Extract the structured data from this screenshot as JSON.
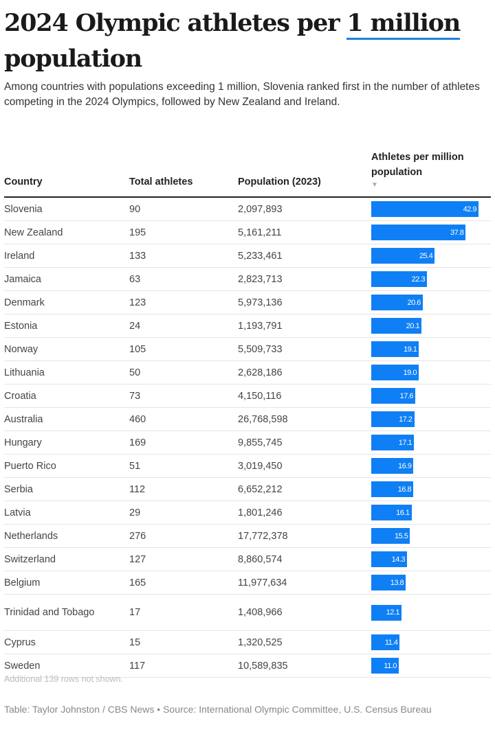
{
  "title": {
    "before": "2024 Olympic athletes per ",
    "highlight": "1 million",
    "after": " population"
  },
  "subtitle": "Among countries with populations exceeding 1 million, Slovenia ranked first in the number of athletes competing in the 2024 Olympics, followed by New Zealand and Ireland.",
  "colors": {
    "bar": "#0f7ff5",
    "highlight_underline": "#1f7fe0"
  },
  "chart_data": {
    "type": "table",
    "columns": [
      "Country",
      "Total athletes",
      "Population (2023)",
      "Athletes per million population"
    ],
    "sort": {
      "column": "Athletes per million population",
      "direction": "descending",
      "icon": "sort-down-triangle"
    },
    "bar_column": "Athletes per million population",
    "xlim": [
      0,
      42.9
    ],
    "rows": [
      {
        "country": "Slovenia",
        "athletes": "90",
        "population": "2,097,893",
        "per_million": 42.9
      },
      {
        "country": "New Zealand",
        "athletes": "195",
        "population": "5,161,211",
        "per_million": 37.8
      },
      {
        "country": "Ireland",
        "athletes": "133",
        "population": "5,233,461",
        "per_million": 25.4
      },
      {
        "country": "Jamaica",
        "athletes": "63",
        "population": "2,823,713",
        "per_million": 22.3
      },
      {
        "country": "Denmark",
        "athletes": "123",
        "population": "5,973,136",
        "per_million": 20.6
      },
      {
        "country": "Estonia",
        "athletes": "24",
        "population": "1,193,791",
        "per_million": 20.1
      },
      {
        "country": "Norway",
        "athletes": "105",
        "population": "5,509,733",
        "per_million": 19.1
      },
      {
        "country": "Lithuania",
        "athletes": "50",
        "population": "2,628,186",
        "per_million": 19.0
      },
      {
        "country": "Croatia",
        "athletes": "73",
        "population": "4,150,116",
        "per_million": 17.6
      },
      {
        "country": "Australia",
        "athletes": "460",
        "population": "26,768,598",
        "per_million": 17.2
      },
      {
        "country": "Hungary",
        "athletes": "169",
        "population": "9,855,745",
        "per_million": 17.1
      },
      {
        "country": "Puerto Rico",
        "athletes": "51",
        "population": "3,019,450",
        "per_million": 16.9
      },
      {
        "country": "Serbia",
        "athletes": "112",
        "population": "6,652,212",
        "per_million": 16.8
      },
      {
        "country": "Latvia",
        "athletes": "29",
        "population": "1,801,246",
        "per_million": 16.1
      },
      {
        "country": "Netherlands",
        "athletes": "276",
        "population": "17,772,378",
        "per_million": 15.5
      },
      {
        "country": "Switzerland",
        "athletes": "127",
        "population": "8,860,574",
        "per_million": 14.3
      },
      {
        "country": "Belgium",
        "athletes": "165",
        "population": "11,977,634",
        "per_million": 13.8
      },
      {
        "country": "Trinidad and Tobago",
        "athletes": "17",
        "population": "1,408,966",
        "per_million": 12.1
      },
      {
        "country": "Cyprus",
        "athletes": "15",
        "population": "1,320,525",
        "per_million": 11.4
      },
      {
        "country": "Sweden",
        "athletes": "117",
        "population": "10,589,835",
        "per_million": 11.0
      }
    ]
  },
  "sort_glyph": "▼",
  "footnote": "Additional 139 rows not shown.",
  "credit": "Table: Taylor Johnston / CBS News • Source: International Olympic Committee, U.S. Census Bureau"
}
